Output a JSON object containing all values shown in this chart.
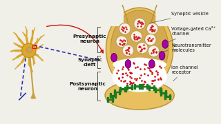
{
  "bg_color": "#f0efe8",
  "neuron_body_color": "#daa830",
  "neuron_outline": "#b88820",
  "nucleus_color": "#c8a868",
  "terminal_fill": "#e8c060",
  "terminal_outline": "#b89030",
  "terminal_inner": "#d4aa50",
  "cleft_color": "#ffffff",
  "vesicle_fill": "#f5ede0",
  "vesicle_outline": "#c0a050",
  "vesicle_dot": "#cc2020",
  "ca_color": "#aa00aa",
  "ca_outline": "#660066",
  "ion_color": "#1a7a20",
  "red_dot_color": "#cc1010",
  "axon_blue": "#3030aa",
  "axon_gold": "#c8a040",
  "arrow_red": "#cc1010",
  "text_color": "#111111",
  "bracket_color": "#555555",
  "label_pre": "Presynaptic\nneuron",
  "label_syn": "Synaptic\ncleft",
  "label_post": "Postsynaptic\nneuron",
  "label_vesicle": "Synaptic vesicle",
  "label_ca": "Voltage-gated Ca²⁺\nchannel",
  "label_neuro": "Neurotransmitter\nmolecules",
  "label_ion": "Ion channel\nreceptor"
}
